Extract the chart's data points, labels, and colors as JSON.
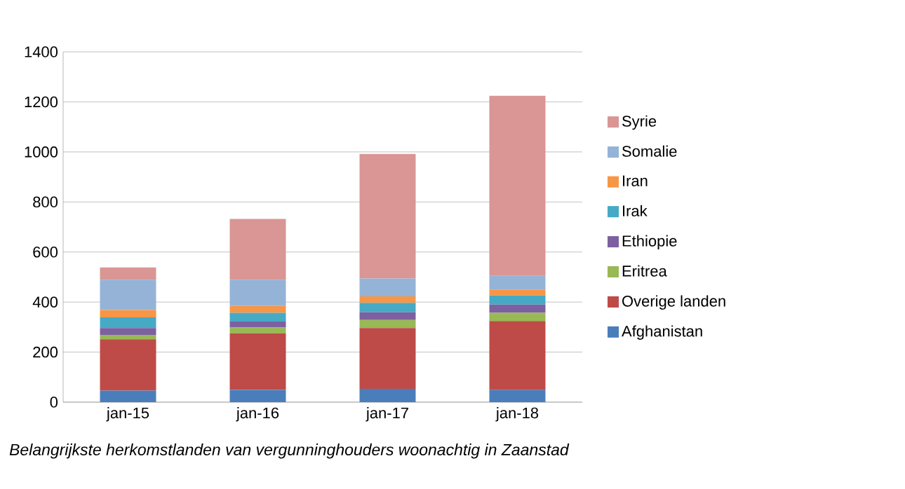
{
  "chart_data": {
    "type": "bar",
    "stacked": true,
    "categories": [
      "jan-15",
      "jan-16",
      "jan-17",
      "jan-18"
    ],
    "series": [
      {
        "name": "Afghanistan",
        "color": "#4a7ebb",
        "values": [
          46,
          49,
          53,
          48
        ]
      },
      {
        "name": "Overige landen",
        "color": "#be4b48",
        "values": [
          205,
          226,
          243,
          276
        ]
      },
      {
        "name": "Eritrea",
        "color": "#98b954",
        "values": [
          18,
          23,
          32,
          33
        ]
      },
      {
        "name": "Ethiopie",
        "color": "#7d60a0",
        "values": [
          27,
          24,
          31,
          33
        ]
      },
      {
        "name": "Irak",
        "color": "#46aac5",
        "values": [
          43,
          35,
          38,
          36
        ]
      },
      {
        "name": "Iran",
        "color": "#f79646",
        "values": [
          29,
          27,
          26,
          24
        ]
      },
      {
        "name": "Somalie",
        "color": "#95b3d7",
        "values": [
          121,
          105,
          71,
          55
        ]
      },
      {
        "name": "Syrie",
        "color": "#d99694",
        "values": [
          49,
          243,
          498,
          719
        ]
      }
    ],
    "ylim": [
      0,
      1400
    ],
    "yticks": [
      0,
      200,
      400,
      600,
      800,
      1000,
      1200,
      1400
    ],
    "grid": "y",
    "legend": "right",
    "annotations": [
      "Belangrijkste herkomstlanden van vergunninghouders woonachtig in Zaanstad"
    ]
  }
}
